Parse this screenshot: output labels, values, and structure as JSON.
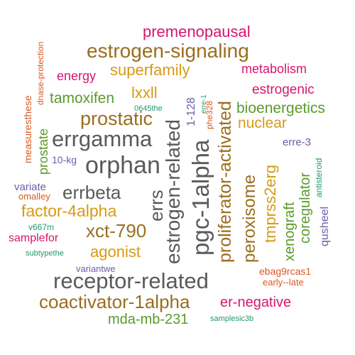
{
  "words": [
    {
      "text": "premenopausal",
      "color": "#d6166f"
    },
    {
      "text": "estrogen-signaling",
      "color": "#9a6e1f"
    },
    {
      "text": "superfamily",
      "color": "#d79a12"
    },
    {
      "text": "metabolism",
      "color": "#d6166f"
    },
    {
      "text": "energy",
      "color": "#d6166f"
    },
    {
      "text": "tamoxifen",
      "color": "#5a9a2a"
    },
    {
      "text": "lxxll",
      "color": "#d79a12"
    },
    {
      "text": "estrogenic",
      "color": "#d6166f"
    },
    {
      "text": "bioenergetics",
      "color": "#5a9a2a"
    },
    {
      "text": "prostatic",
      "color": "#9a6e1f"
    },
    {
      "text": "nuclear",
      "color": "#d79a12"
    },
    {
      "text": "errgamma",
      "color": "#5a5a5a"
    },
    {
      "text": "orphan",
      "color": "#5a5a5a"
    },
    {
      "text": "errbeta",
      "color": "#5a5a5a"
    },
    {
      "text": "factor-4alpha",
      "color": "#d79a12"
    },
    {
      "text": "xct-790",
      "color": "#9a6e1f"
    },
    {
      "text": "agonist",
      "color": "#d79a12"
    },
    {
      "text": "receptor-related",
      "color": "#5a5a5a"
    },
    {
      "text": "coactivator-1alpha",
      "color": "#9a6e1f"
    },
    {
      "text": "er-negative",
      "color": "#d6166f"
    },
    {
      "text": "mda-mb-231",
      "color": "#5a9a2a"
    },
    {
      "text": "samplesic3b",
      "color": "#1f9a6e"
    },
    {
      "text": "variate",
      "color": "#6b5fa6"
    },
    {
      "text": "omalley",
      "color": "#d9591f"
    },
    {
      "text": "samplefor",
      "color": "#d6166f"
    },
    {
      "text": "v667m",
      "color": "#1f9a6e"
    },
    {
      "text": "subtypethe",
      "color": "#1f9a6e"
    },
    {
      "text": "variantwe",
      "color": "#6b5fa6"
    },
    {
      "text": "10-kg",
      "color": "#6b5fa6"
    },
    {
      "text": "0645the",
      "color": "#1f9a6e"
    },
    {
      "text": "erre-3",
      "color": "#6b5fa6"
    },
    {
      "text": "ebag9rcas1",
      "color": "#d9591f"
    },
    {
      "text": "early--late",
      "color": "#d9591f"
    },
    {
      "text": "measuresthese",
      "color": "#d9591f"
    },
    {
      "text": "dnase-protection",
      "color": "#d9591f"
    },
    {
      "text": "prostate",
      "color": "#5a9a2a"
    },
    {
      "text": "errs",
      "color": "#5a5a5a"
    },
    {
      "text": "estrogen-related",
      "color": "#5a5a5a"
    },
    {
      "text": "1-128",
      "color": "#6b5fa6"
    },
    {
      "text": "pgc-1alpha",
      "color": "#5a5a5a"
    },
    {
      "text": "phe328",
      "color": "#d9591f"
    },
    {
      "text": "erre-1",
      "color": "#1f9a6e"
    },
    {
      "text": "proliferator-activated",
      "color": "#9a6e1f"
    },
    {
      "text": "peroxisome",
      "color": "#9a6e1f"
    },
    {
      "text": "tmprss2erg",
      "color": "#d79a12"
    },
    {
      "text": "xenograft",
      "color": "#5a9a2a"
    },
    {
      "text": "coregulator",
      "color": "#5a9a2a"
    },
    {
      "text": "antisteroid",
      "color": "#1f9a6e"
    },
    {
      "text": "qusheel",
      "color": "#6b5fa6"
    }
  ]
}
